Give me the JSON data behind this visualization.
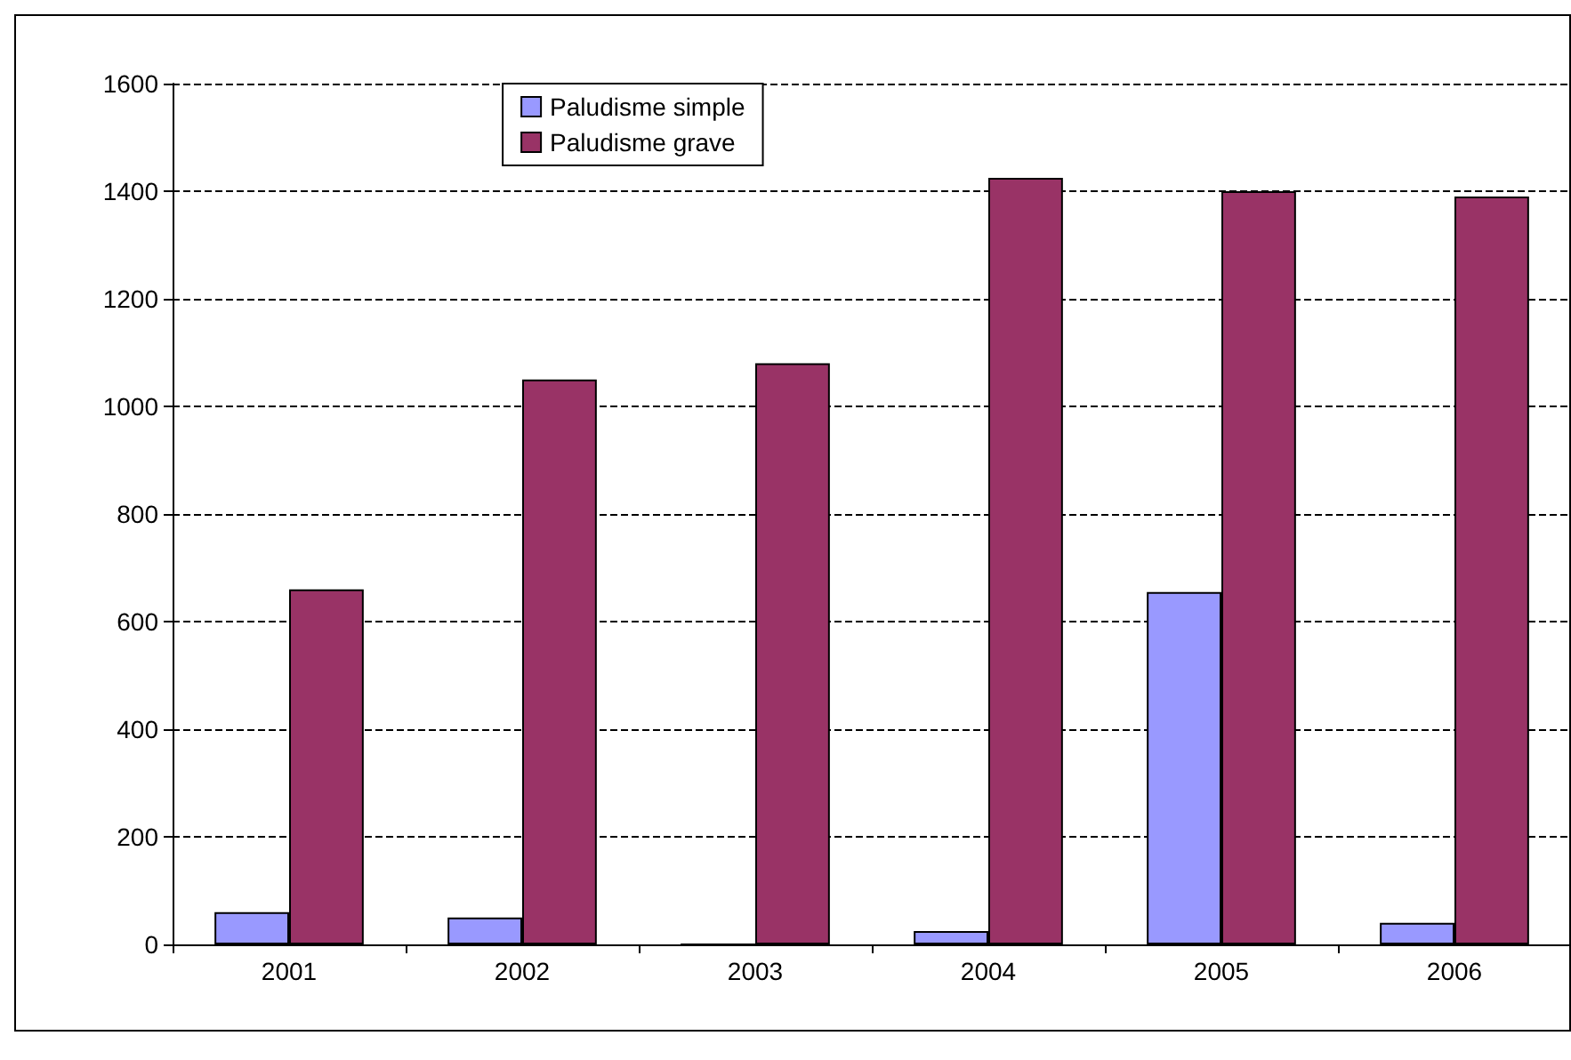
{
  "chart_data": {
    "type": "bar",
    "categories": [
      "2001",
      "2002",
      "2003",
      "2004",
      "2005",
      "2006"
    ],
    "series": [
      {
        "name": "Paludisme simple",
        "color": "#9999ff",
        "values": [
          60,
          50,
          0,
          25,
          655,
          40
        ]
      },
      {
        "name": "Paludisme grave",
        "color": "#993366",
        "values": [
          660,
          1050,
          1080,
          1425,
          1400,
          1390
        ]
      }
    ],
    "ylim": [
      0,
      1600
    ],
    "yticks": [
      0,
      200,
      400,
      600,
      800,
      1000,
      1200,
      1400,
      1600
    ],
    "grid": "y",
    "legend": "top left"
  }
}
